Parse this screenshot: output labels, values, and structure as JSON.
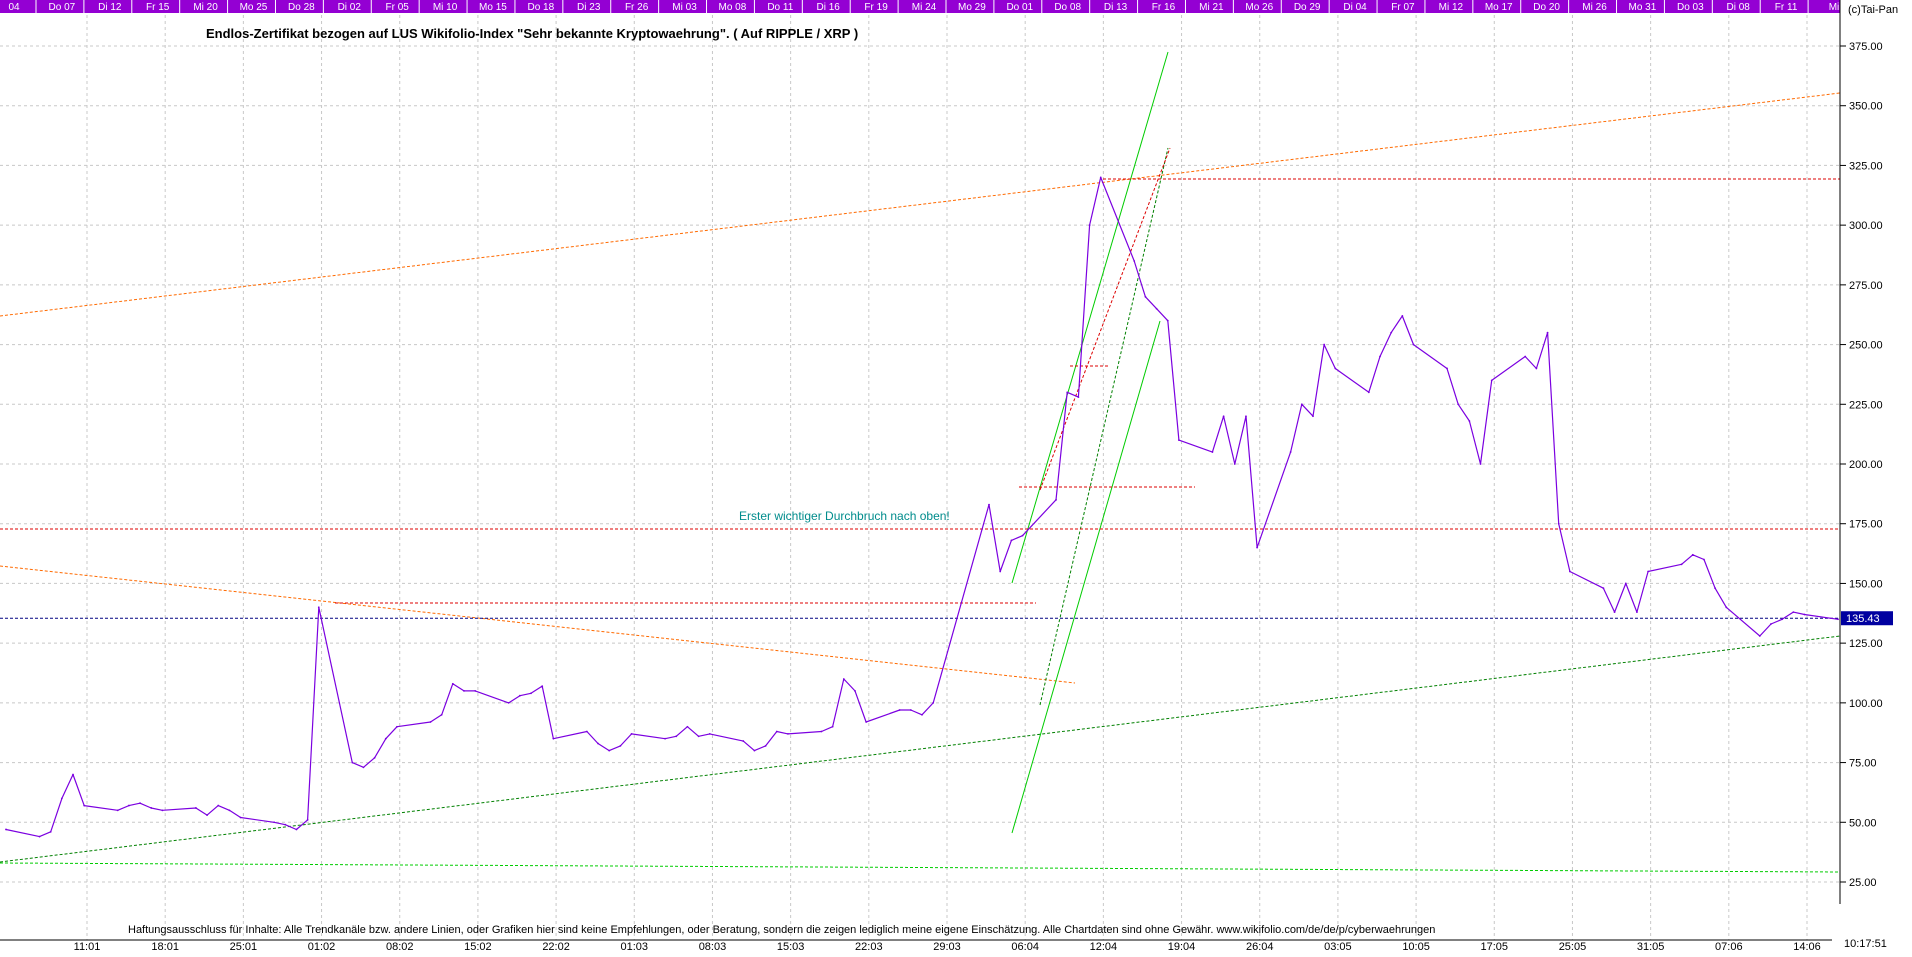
{
  "copyright": "(c)Tai-Pan",
  "title": "Endlos-Zertifikat bezogen auf LUS Wikifolio-Index \"Sehr bekannte Kryptowaehrung\". ( Auf RIPPLE / XRP )",
  "annotation": "Erster wichtiger Durchbruch nach oben!",
  "disclaimer": "Haftungsausschluss für Inhalte: Alle Trendkanäle bzw. andere Linien, oder Grafiken hier sind keine Empfehlungen, oder Beratung, sondern die zeigen lediglich meine eigene Einschätzung. Alle Chartdaten sind ohne Gewähr.  www.wikifolio.com/de/de/p/cyberwaehrungen",
  "time_readout": "10:17:51",
  "colors": {
    "price_line": "#7b00e0",
    "top_bar": "#9400d3",
    "last_price_box": "#0000a0",
    "trend_green": "#00cc00",
    "trend_red": "#dd0000",
    "trend_orange": "#ff6a00",
    "grid": "#c8c8c8",
    "annotation_text": "#008c8c"
  },
  "chart_data": {
    "type": "line",
    "title": "Endlos-Zertifikat bezogen auf LUS Wikifolio-Index \"Sehr bekannte Kryptowaehrung\". ( Auf RIPPLE / XRP )",
    "xlabel": "",
    "ylabel": "",
    "ylim": [
      15,
      390
    ],
    "y_ticks": [
      25,
      50,
      75,
      100,
      125,
      150,
      175,
      200,
      225,
      250,
      275,
      300,
      325,
      350,
      375
    ],
    "y_tick_labels": [
      "25.00",
      "50.00",
      "75.00",
      "100.00",
      "125.00",
      "150.00",
      "175.00",
      "200.00",
      "225.00",
      "250.00",
      "275.00",
      "300.00",
      "325.00",
      "350.00",
      "375.00"
    ],
    "x_labels_bottom": [
      "11:01",
      "18:01",
      "25:01",
      "01:02",
      "08:02",
      "15:02",
      "22:02",
      "01:03",
      "08:03",
      "15:03",
      "22:03",
      "29:03",
      "06:04",
      "12:04",
      "19:04",
      "26:04",
      "03:05",
      "10:05",
      "17:05",
      "25:05",
      "31:05",
      "07:06",
      "14:06"
    ],
    "x_labels_top": [
      "04",
      "Do 07",
      "Di 12",
      "Fr 15",
      "Mi 20",
      "Mo 25",
      "Do 28",
      "Di 02",
      "Fr 05",
      "Mi 10",
      "Mo 15",
      "Do 18",
      "Di 23",
      "Fr 26",
      "Mi 03",
      "Mo 08",
      "Do 11",
      "Di 16",
      "Fr 19",
      "Mi 24",
      "Mo 29",
      "Do 01",
      "Do 08",
      "Di 13",
      "Fr 16",
      "Mi 21",
      "Mo 26",
      "Do 29",
      "Di 04",
      "Fr 07",
      "Mi 12",
      "Mo 17",
      "Do 20",
      "Mi 26",
      "Mo 31",
      "Do 03",
      "Di 08",
      "Fr 11",
      "Mi"
    ],
    "last_price": 135.43,
    "last_price_label": "135.43",
    "grid": true,
    "series": [
      {
        "x": [
          "2018-01-05",
          "2018-01-08",
          "2018-01-09",
          "2018-01-10",
          "2018-01-11",
          "2018-01-12",
          "2018-01-15",
          "2018-01-16",
          "2018-01-17",
          "2018-01-18",
          "2018-01-19",
          "2018-01-22",
          "2018-01-23",
          "2018-01-24",
          "2018-01-25",
          "2018-01-26",
          "2018-01-29",
          "2018-01-30",
          "2018-01-31",
          "2018-02-01",
          "2018-02-02",
          "2018-02-05",
          "2018-02-06",
          "2018-02-07",
          "2018-02-08",
          "2018-02-09",
          "2018-02-12",
          "2018-02-13",
          "2018-02-14",
          "2018-02-15",
          "2018-02-16",
          "2018-02-19",
          "2018-02-20",
          "2018-02-21",
          "2018-02-22",
          "2018-02-23",
          "2018-02-26",
          "2018-02-27",
          "2018-02-28",
          "2018-03-01",
          "2018-03-02",
          "2018-03-05",
          "2018-03-06",
          "2018-03-07",
          "2018-03-08",
          "2018-03-09",
          "2018-03-12",
          "2018-03-13",
          "2018-03-14",
          "2018-03-15",
          "2018-03-16",
          "2018-03-19",
          "2018-03-20",
          "2018-03-21",
          "2018-03-22",
          "2018-03-23",
          "2018-03-26",
          "2018-03-27",
          "2018-03-28",
          "2018-03-29",
          "2018-04-03",
          "2018-04-04",
          "2018-04-05",
          "2018-04-06",
          "2018-04-09",
          "2018-04-10",
          "2018-04-11",
          "2018-04-12",
          "2018-04-13",
          "2018-04-16",
          "2018-04-17",
          "2018-04-18",
          "2018-04-19",
          "2018-04-20",
          "2018-04-23",
          "2018-04-24",
          "2018-04-25",
          "2018-04-26",
          "2018-04-27",
          "2018-04-30",
          "2018-05-01",
          "2018-05-02",
          "2018-05-03",
          "2018-05-04",
          "2018-05-07",
          "2018-05-08",
          "2018-05-09",
          "2018-05-10",
          "2018-05-11",
          "2018-05-14",
          "2018-05-15",
          "2018-05-16",
          "2018-05-17",
          "2018-05-18",
          "2018-05-21",
          "2018-05-22",
          "2018-05-23",
          "2018-05-24",
          "2018-05-25",
          "2018-05-28",
          "2018-05-29",
          "2018-05-30",
          "2018-05-31",
          "2018-06-01",
          "2018-06-04",
          "2018-06-05",
          "2018-06-06",
          "2018-06-07",
          "2018-06-08",
          "2018-06-11",
          "2018-06-12",
          "2018-06-13",
          "2018-06-14",
          "2018-06-15",
          "2018-06-18"
        ],
        "values": [
          47,
          44,
          46,
          60,
          70,
          57,
          55,
          57,
          58,
          56,
          55,
          56,
          53,
          57,
          55,
          52,
          50,
          49,
          47,
          51,
          140,
          75,
          73,
          77,
          85,
          90,
          92,
          95,
          108,
          105,
          105,
          100,
          103,
          104,
          107,
          85,
          88,
          83,
          80,
          82,
          87,
          85,
          86,
          90,
          86,
          87,
          84,
          80,
          82,
          88,
          87,
          88,
          90,
          110,
          105,
          92,
          97,
          97,
          95,
          100,
          183,
          155,
          168,
          170,
          185,
          230,
          228,
          300,
          320,
          285,
          270,
          265,
          260,
          210,
          205,
          220,
          200,
          220,
          165,
          205,
          225,
          220,
          250,
          240,
          230,
          245,
          255,
          262,
          250,
          240,
          225,
          218,
          200,
          235,
          245,
          240,
          255,
          175,
          155,
          148,
          138,
          150,
          138,
          155,
          158,
          162,
          160,
          148,
          140,
          128,
          133,
          135,
          138,
          137,
          135
        ]
      }
    ],
    "horizontal_levels": [
      {
        "value": 320,
        "style": "red-dashed"
      },
      {
        "value": 173,
        "style": "red-dashed"
      },
      {
        "value": 141,
        "style": "red-dashed"
      },
      {
        "value": 191,
        "style": "red-dashed"
      },
      {
        "value": 241,
        "style": "red-dashed"
      },
      {
        "value": 135.43,
        "style": "blue-dashed"
      }
    ]
  }
}
